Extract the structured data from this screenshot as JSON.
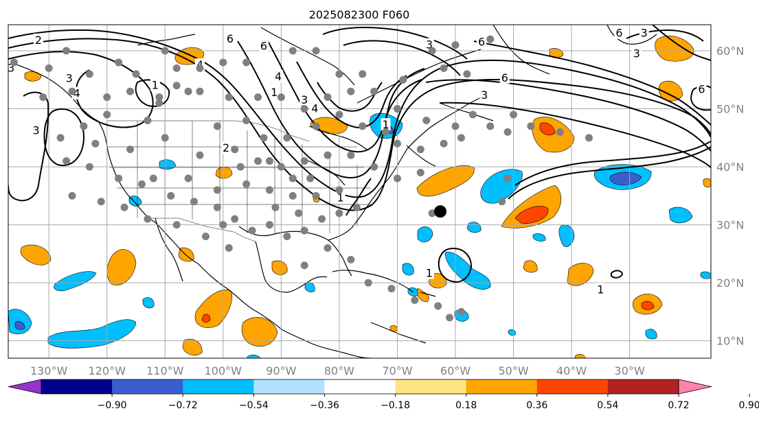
{
  "title": "2025082300 F060",
  "map": {
    "projection": "equirectangular",
    "lon_range": [
      -137,
      -16
    ],
    "lat_range": [
      7,
      64.5
    ],
    "lon_ticks": [
      {
        "value": -130,
        "label": "130°W"
      },
      {
        "value": -120,
        "label": "120°W"
      },
      {
        "value": -110,
        "label": "110°W"
      },
      {
        "value": -100,
        "label": "100°W"
      },
      {
        "value": -90,
        "label": "90°W"
      },
      {
        "value": -80,
        "label": "80°W"
      },
      {
        "value": -70,
        "label": "70°W"
      },
      {
        "value": -60,
        "label": "60°W"
      },
      {
        "value": -50,
        "label": "50°W"
      },
      {
        "value": -40,
        "label": "40°W"
      },
      {
        "value": -30,
        "label": "30°W"
      }
    ],
    "lat_ticks": [
      {
        "value": 60,
        "label": "60°N"
      },
      {
        "value": 50,
        "label": "50°N"
      },
      {
        "value": 40,
        "label": "40°N"
      },
      {
        "value": 30,
        "label": "30°N"
      },
      {
        "value": 20,
        "label": "20°N"
      },
      {
        "value": 10,
        "label": "10°N"
      }
    ],
    "grid": true,
    "grid_color": "#a9a9a9"
  },
  "colorbar": {
    "orientation": "horizontal",
    "extend": "both",
    "colors": [
      "#9932cc",
      "#00008b",
      "#3a5fcd",
      "#00bfff",
      "#b0e2ff",
      "#ffffff",
      "#ffe680",
      "#ffa500",
      "#ff4500",
      "#b22222",
      "#ff82ab"
    ],
    "tick_labels": [
      "−0.90",
      "−0.72",
      "−0.54",
      "−0.36",
      "−0.18",
      "0.18",
      "0.36",
      "0.54",
      "0.72",
      "0.90"
    ]
  },
  "contour_labels": [
    {
      "text": "2",
      "lon": -131.8,
      "lat": 61.8
    },
    {
      "text": "3",
      "lon": -136.5,
      "lat": 57.0
    },
    {
      "text": "3",
      "lon": -126.5,
      "lat": 55.2
    },
    {
      "text": "4",
      "lon": -125.2,
      "lat": 52.6
    },
    {
      "text": "3",
      "lon": -132.2,
      "lat": 46.2
    },
    {
      "text": "1",
      "lon": -111.7,
      "lat": 54.0
    },
    {
      "text": "4",
      "lon": -104.0,
      "lat": 57.5
    },
    {
      "text": "6",
      "lon": -98.8,
      "lat": 62.0
    },
    {
      "text": "6",
      "lon": -93.0,
      "lat": 60.8
    },
    {
      "text": "4",
      "lon": -90.5,
      "lat": 55.5
    },
    {
      "text": "1",
      "lon": -91.2,
      "lat": 52.8
    },
    {
      "text": "3",
      "lon": -86.0,
      "lat": 51.5
    },
    {
      "text": "4",
      "lon": -84.2,
      "lat": 50.0
    },
    {
      "text": "2",
      "lon": -99.5,
      "lat": 43.2
    },
    {
      "text": "1",
      "lon": -72.0,
      "lat": 47.2
    },
    {
      "text": "1",
      "lon": -79.8,
      "lat": 34.6
    },
    {
      "text": "3",
      "lon": -64.5,
      "lat": 61.0
    },
    {
      "text": "6",
      "lon": -55.5,
      "lat": 61.5
    },
    {
      "text": "6",
      "lon": -51.5,
      "lat": 55.3
    },
    {
      "text": "3",
      "lon": -55.0,
      "lat": 52.3
    },
    {
      "text": "6",
      "lon": -31.8,
      "lat": 63.0
    },
    {
      "text": "3",
      "lon": -27.5,
      "lat": 63.0
    },
    {
      "text": "3",
      "lon": -28.8,
      "lat": 59.5
    },
    {
      "text": "6",
      "lon": -17.6,
      "lat": 53.3
    },
    {
      "text": "1",
      "lon": -64.5,
      "lat": 21.6
    },
    {
      "text": "1",
      "lon": -35.0,
      "lat": 18.8
    }
  ],
  "gray_dots": [
    [
      -136,
      58
    ],
    [
      -127,
      60
    ],
    [
      -130,
      57
    ],
    [
      -123,
      56
    ],
    [
      -118,
      58
    ],
    [
      -115,
      56
    ],
    [
      -110,
      60
    ],
    [
      -108,
      57
    ],
    [
      -104,
      57
    ],
    [
      -100,
      58
    ],
    [
      -96,
      58
    ],
    [
      -106,
      53
    ],
    [
      -111,
      52
    ],
    [
      -116,
      53
    ],
    [
      -120,
      52
    ],
    [
      -126,
      53
    ],
    [
      -131,
      52
    ],
    [
      -124,
      47
    ],
    [
      -120,
      49
    ],
    [
      -113,
      48
    ],
    [
      -111,
      51
    ],
    [
      -101,
      47
    ],
    [
      -96,
      48
    ],
    [
      -93,
      45
    ],
    [
      -89,
      45
    ],
    [
      -86,
      50
    ],
    [
      -84,
      47
    ],
    [
      -80,
      49
    ],
    [
      -76,
      47
    ],
    [
      -72,
      46
    ],
    [
      -70,
      44
    ],
    [
      -66,
      43
    ],
    [
      -62,
      44
    ],
    [
      -60,
      47
    ],
    [
      -57,
      49
    ],
    [
      -54,
      47
    ],
    [
      -51,
      46
    ],
    [
      -50,
      49
    ],
    [
      -47,
      47
    ],
    [
      -42,
      46
    ],
    [
      -37,
      45
    ],
    [
      -59,
      45
    ],
    [
      -65,
      48
    ],
    [
      -70,
      50
    ],
    [
      -74,
      53
    ],
    [
      -78,
      53
    ],
    [
      -82,
      52
    ],
    [
      -90,
      52
    ],
    [
      -94,
      52
    ],
    [
      -99,
      52
    ],
    [
      -104,
      53
    ],
    [
      -108,
      54
    ],
    [
      -88,
      60
    ],
    [
      -84,
      60
    ],
    [
      -80,
      56
    ],
    [
      -76,
      56
    ],
    [
      -69,
      55
    ],
    [
      -62,
      57
    ],
    [
      -58,
      56
    ],
    [
      -54,
      62
    ],
    [
      -60,
      61
    ],
    [
      -64,
      60
    ],
    [
      -128,
      45
    ],
    [
      -122,
      44
    ],
    [
      -116,
      43
    ],
    [
      -110,
      45
    ],
    [
      -104,
      42
    ],
    [
      -98,
      43
    ],
    [
      -94,
      41
    ],
    [
      -90,
      40
    ],
    [
      -86,
      41
    ],
    [
      -82,
      42
    ],
    [
      -78,
      42
    ],
    [
      -74,
      40
    ],
    [
      -70,
      38
    ],
    [
      -66,
      39
    ],
    [
      -127,
      41
    ],
    [
      -123,
      40
    ],
    [
      -118,
      38
    ],
    [
      -114,
      37
    ],
    [
      -109,
      35
    ],
    [
      -105,
      34
    ],
    [
      -101,
      33
    ],
    [
      -98,
      31
    ],
    [
      -95,
      29
    ],
    [
      -92,
      30
    ],
    [
      -89,
      28
    ],
    [
      -86,
      29
    ],
    [
      -83,
      31
    ],
    [
      -80,
      32
    ],
    [
      -77,
      33
    ],
    [
      -112,
      38
    ],
    [
      -106,
      38
    ],
    [
      -101,
      36
    ],
    [
      -96,
      37
    ],
    [
      -92,
      36
    ],
    [
      -88,
      35
    ],
    [
      -84,
      35
    ],
    [
      -80,
      36
    ],
    [
      -126,
      35
    ],
    [
      -121,
      34
    ],
    [
      -117,
      33
    ],
    [
      -113,
      31
    ],
    [
      -108,
      30
    ],
    [
      -103,
      28
    ],
    [
      -99,
      26
    ],
    [
      -82,
      26
    ],
    [
      -78,
      24
    ],
    [
      -86,
      23
    ],
    [
      -75,
      20
    ],
    [
      -71,
      19
    ],
    [
      -67,
      17
    ],
    [
      -63,
      16
    ],
    [
      -59,
      15
    ],
    [
      -61,
      14
    ],
    [
      -64,
      32
    ],
    [
      -51,
      38
    ],
    [
      -52,
      34
    ],
    [
      -97,
      40
    ],
    [
      -92,
      41
    ],
    [
      -88,
      38
    ],
    [
      -91,
      33
    ],
    [
      -87,
      32
    ],
    [
      -85,
      38
    ],
    [
      -100,
      30
    ]
  ],
  "black_dot": {
    "lon": -62.6,
    "lat": 32.3
  }
}
